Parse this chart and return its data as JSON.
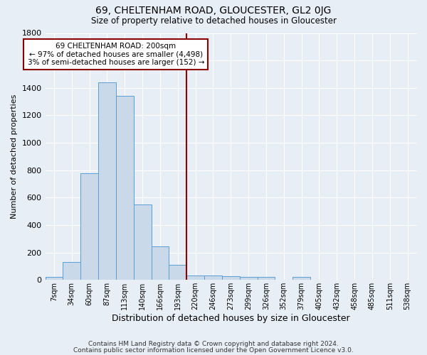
{
  "title": "69, CHELTENHAM ROAD, GLOUCESTER, GL2 0JG",
  "subtitle": "Size of property relative to detached houses in Gloucester",
  "xlabel": "Distribution of detached houses by size in Gloucester",
  "ylabel": "Number of detached properties",
  "categories": [
    "7sqm",
    "34sqm",
    "60sqm",
    "87sqm",
    "113sqm",
    "140sqm",
    "166sqm",
    "193sqm",
    "220sqm",
    "246sqm",
    "273sqm",
    "299sqm",
    "326sqm",
    "352sqm",
    "379sqm",
    "405sqm",
    "432sqm",
    "458sqm",
    "485sqm",
    "511sqm",
    "538sqm"
  ],
  "values": [
    20,
    130,
    780,
    1440,
    1340,
    550,
    245,
    110,
    35,
    35,
    25,
    20,
    20,
    0,
    20,
    0,
    0,
    0,
    0,
    0,
    0
  ],
  "bar_color": "#c9d9ea",
  "bar_edge_color": "#5a9fd4",
  "background_color": "#e8eef5",
  "grid_color": "#ffffff",
  "vline_color": "#8b0000",
  "vline_x": 7.5,
  "annotation_text": "69 CHELTENHAM ROAD: 200sqm\n← 97% of detached houses are smaller (4,498)\n3% of semi-detached houses are larger (152) →",
  "annotation_box_color": "#ffffff",
  "annotation_box_edge": "#8b0000",
  "ylim": [
    0,
    1800
  ],
  "yticks": [
    0,
    200,
    400,
    600,
    800,
    1000,
    1200,
    1400,
    1600,
    1800
  ],
  "footer1": "Contains HM Land Registry data © Crown copyright and database right 2024.",
  "footer2": "Contains public sector information licensed under the Open Government Licence v3.0."
}
